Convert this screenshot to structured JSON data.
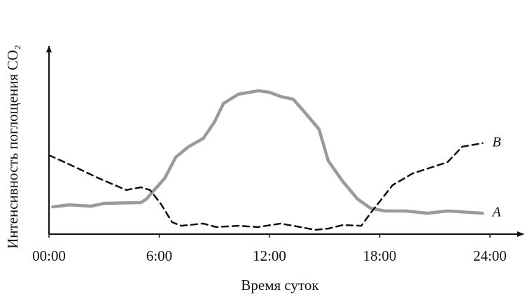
{
  "chart_data": {
    "type": "line",
    "xlabel": "Время суток",
    "ylabel": "Интенсивность поглощения CO₂",
    "xlim": [
      0,
      24
    ],
    "ylim": [
      0,
      100
    ],
    "xticks": [
      {
        "value": 0,
        "label": "00:00"
      },
      {
        "value": 6,
        "label": "6:00"
      },
      {
        "value": 12,
        "label": "12:00"
      },
      {
        "value": 18,
        "label": "18:00"
      },
      {
        "value": 24,
        "label": "24:00"
      }
    ],
    "series": [
      {
        "name": "A",
        "color": "#9a9a9a",
        "style": "solid",
        "x": [
          0.2,
          1.1,
          2.3,
          3.0,
          5.0,
          5.3,
          6.3,
          6.9,
          7.6,
          8.4,
          9.0,
          9.5,
          10.3,
          11.4,
          12.0,
          12.6,
          13.3,
          13.9,
          14.7,
          15.2,
          16.0,
          16.8,
          17.5,
          18.3,
          19.4,
          20.6,
          21.7,
          23.6
        ],
        "values": [
          14.7,
          15.8,
          15.1,
          16.6,
          17.0,
          18.9,
          30.2,
          41.5,
          47.2,
          51.7,
          60.4,
          70.6,
          75.5,
          77.4,
          76.6,
          74.3,
          72.8,
          66.0,
          56.6,
          39.6,
          28.3,
          18.9,
          14.0,
          12.5,
          12.5,
          11.3,
          12.5,
          11.3
        ]
      },
      {
        "name": "B",
        "color": "#111111",
        "style": "dashed",
        "x": [
          0,
          1.1,
          2.7,
          4.2,
          5.0,
          5.5,
          6.1,
          6.7,
          7.2,
          8.4,
          9.1,
          10.3,
          11.4,
          12.6,
          13.3,
          14.5,
          15.2,
          16.0,
          17.0,
          17.5,
          18.7,
          19.8,
          21.0,
          21.7,
          22.5,
          23.6
        ],
        "values": [
          42.6,
          37.7,
          30.2,
          23.8,
          25.3,
          23.8,
          16.2,
          6.4,
          4.5,
          5.7,
          3.8,
          4.5,
          3.8,
          5.7,
          4.5,
          2.3,
          3.0,
          4.9,
          4.5,
          11.3,
          26.4,
          32.8,
          36.6,
          38.9,
          47.2,
          49.1
        ]
      }
    ]
  }
}
